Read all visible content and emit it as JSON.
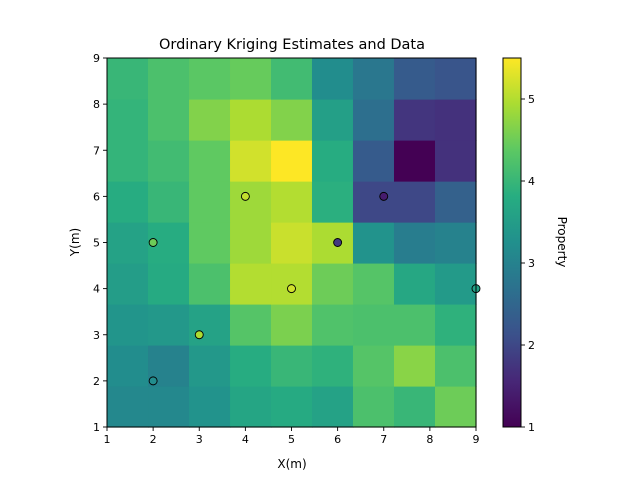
{
  "chart_data": {
    "type": "heatmap",
    "title": "Ordinary Kriging Estimates and Data",
    "xlabel": "X(m)",
    "ylabel": "Y(m)",
    "xlim": [
      1,
      9
    ],
    "ylim": [
      1,
      9
    ],
    "x_ticks": [
      "1",
      "2",
      "3",
      "4",
      "5",
      "6",
      "7",
      "8",
      "9"
    ],
    "y_ticks": [
      "1",
      "2",
      "3",
      "4",
      "5",
      "6",
      "7",
      "8",
      "9"
    ],
    "grid": false,
    "colormap": "viridis",
    "colorbar": {
      "label": "Property",
      "range": [
        1,
        5.5
      ],
      "ticks": [
        "1",
        "2",
        "3",
        "4",
        "5"
      ],
      "placement": "right"
    },
    "grid_x_edges": [
      1,
      1.889,
      2.778,
      3.667,
      4.556,
      5.444,
      6.333,
      7.222,
      8.111,
      9
    ],
    "grid_y_edges": [
      1,
      1.889,
      2.778,
      3.667,
      4.556,
      5.444,
      6.333,
      7.222,
      8.111,
      9
    ],
    "estimates_rows_bottom_to_top": [
      [
        3.1,
        3.1,
        3.3,
        3.65,
        3.75,
        3.6,
        4.2,
        4.0,
        4.5
      ],
      [
        3.2,
        3.0,
        3.4,
        3.8,
        4.0,
        3.9,
        4.3,
        4.7,
        4.2
      ],
      [
        3.35,
        3.4,
        3.6,
        4.3,
        4.6,
        4.25,
        4.2,
        4.2,
        3.9
      ],
      [
        3.5,
        3.75,
        4.2,
        5.0,
        5.0,
        4.5,
        4.3,
        3.7,
        3.45
      ],
      [
        3.6,
        3.8,
        4.4,
        4.85,
        5.15,
        4.95,
        3.3,
        2.9,
        3.0
      ],
      [
        3.8,
        4.0,
        4.4,
        4.85,
        5.0,
        3.85,
        2.0,
        2.0,
        2.4
      ],
      [
        3.95,
        4.1,
        4.4,
        5.2,
        5.5,
        3.8,
        2.3,
        0.95,
        1.7
      ],
      [
        3.95,
        4.2,
        4.65,
        4.95,
        4.65,
        3.55,
        2.65,
        1.75,
        1.7
      ],
      [
        4.0,
        4.2,
        4.35,
        4.45,
        4.1,
        3.2,
        2.8,
        2.3,
        2.2
      ]
    ],
    "data_points": [
      {
        "x": 2,
        "y": 2,
        "value": 3.2
      },
      {
        "x": 2,
        "y": 5,
        "value": 4.5
      },
      {
        "x": 3,
        "y": 3,
        "value": 4.95
      },
      {
        "x": 4,
        "y": 6,
        "value": 5.1
      },
      {
        "x": 5,
        "y": 4,
        "value": 5.2
      },
      {
        "x": 6,
        "y": 5,
        "value": 1.8
      },
      {
        "x": 7,
        "y": 6,
        "value": 1.4
      },
      {
        "x": 9,
        "y": 4,
        "value": 3.6
      }
    ]
  }
}
